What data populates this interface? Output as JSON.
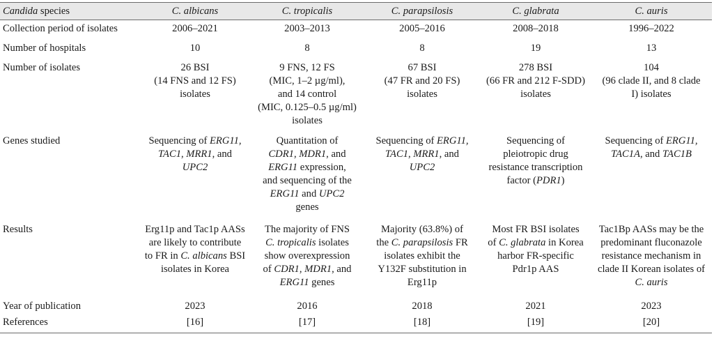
{
  "header": {
    "label_italic": "Candida",
    "label_rest": " species",
    "species": [
      "C. albicans",
      "C. tropicalis",
      "C. parapsilosis",
      "C. glabrata",
      "C. auris"
    ]
  },
  "rows": {
    "collection": {
      "label": "Collection period of isolates",
      "values": [
        "2006–2021",
        "2003–2013",
        "2005–2016",
        "2008–2018",
        "1996–2022"
      ]
    },
    "hospitals": {
      "label": "Number of hospitals",
      "values": [
        "10",
        "8",
        "8",
        "19",
        "13"
      ]
    },
    "isolates": {
      "label": "Number of isolates",
      "values": [
        [
          "26 BSI",
          "(14 FNS and 12 FS)",
          "isolates"
        ],
        [
          "9 FNS, 12 FS",
          "(MIC, 1–2 µg/ml),",
          "and 14 control",
          "(MIC, 0.125–0.5 µg/ml)",
          "isolates"
        ],
        [
          "67 BSI",
          "(47 FR and 20 FS)",
          "isolates"
        ],
        [
          "278 BSI",
          "(66 FR and 212 F-SDD)",
          "isolates"
        ],
        [
          "104",
          "(96 clade II, and 8 clade",
          "I) isolates"
        ]
      ]
    },
    "genes": {
      "label": "Genes studied",
      "c1": {
        "a": "Sequencing of ",
        "b": "ERG11,",
        "c": "TAC1",
        "d": ", ",
        "e": "MRR1",
        "f": ", and",
        "g": "UPC2"
      },
      "c2": {
        "a": "Quantitation of",
        "b": "CDR1",
        "c": ", ",
        "d": "MDR1",
        "e": ", and",
        "f": "ERG11",
        "g": " expression,",
        "h": "and sequencing of the",
        "i": "ERG11",
        "j": " and ",
        "k": "UPC2",
        "l": "genes"
      },
      "c3": {
        "a": "Sequencing of ",
        "b": "ERG11,",
        "c": "TAC1",
        "d": ", ",
        "e": "MRR1",
        "f": ", and",
        "g": "UPC2"
      },
      "c4": {
        "a": "Sequencing of",
        "b": "pleiotropic drug",
        "c": "resistance transcription",
        "d": "factor (",
        "e": "PDR1",
        "f": ")"
      },
      "c5": {
        "a": "Sequencing of ",
        "b": "ERG11,",
        "c": "TAC1A",
        "d": ", and ",
        "e": "TAC1B"
      }
    },
    "results": {
      "label": "Results",
      "c1": {
        "a": "Erg11p and Tac1p AASs",
        "b": "are likely to contribute",
        "c": "to FR in ",
        "d": "C. albicans",
        "e": " BSI",
        "f": "isolates in Korea"
      },
      "c2": {
        "a": "The majority of FNS",
        "b": "C. tropicalis",
        "c": " isolates",
        "d": "show overexpression",
        "e": "of ",
        "f": "CDR1",
        "g": ", ",
        "h": "MDR1",
        "i": ", and",
        "j": "ERG11",
        "k": " genes"
      },
      "c3": {
        "a": "Majority (63.8%) of",
        "b": "the ",
        "c": "C. parapsilosis",
        "d": " FR",
        "e": "isolates exhibit the",
        "f": "Y132F substitution in",
        "g": "Erg11p"
      },
      "c4": {
        "a": "Most FR BSI isolates",
        "b": "of ",
        "c": "C. glabrata",
        "d": " in Korea",
        "e": "harbor FR-specific",
        "f": "Pdr1p AAS"
      },
      "c5": {
        "a": "Tac1Bp AASs may be the",
        "b": "predominant fluconazole",
        "c": "resistance mechanism in",
        "d": "clade II Korean isolates of",
        "e": "C. auris"
      }
    },
    "year": {
      "label": "Year of publication",
      "values": [
        "2023",
        "2016",
        "2018",
        "2021",
        "2023"
      ]
    },
    "refs": {
      "label": "References",
      "values": [
        "[16]",
        "[17]",
        "[18]",
        "[19]",
        "[20]"
      ]
    }
  }
}
